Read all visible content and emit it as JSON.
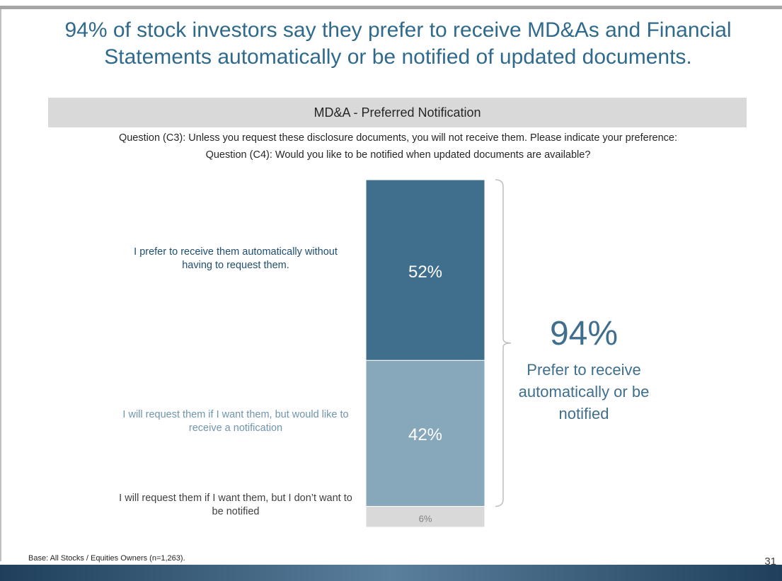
{
  "chart_data": {
    "type": "stacked-bar",
    "title": "94% of stock investors say they prefer to receive MD&As and Financial Statements automatically or be notified of updated documents.",
    "subtitle": "MD&A - Preferred Notification",
    "questions": [
      "Question (C3): Unless you request these disclosure documents, you will not receive them. Please indicate your preference:",
      "Question (C4): Would you like to be notified when updated documents are available?"
    ],
    "series": [
      {
        "name": "I prefer to receive them automatically without having to request them.",
        "color": "#3f6f8c",
        "label_color": "#1f4e6e",
        "value_label_color": "#ffffff",
        "values": [
          52
        ],
        "value_labels": [
          "52%"
        ]
      },
      {
        "name": "I will request them if I want them, but would like to receive a notification",
        "color": "#87a7ba",
        "label_color": "#6f95ad",
        "value_label_color": "#ffffff",
        "values": [
          42
        ],
        "value_labels": [
          "42%"
        ]
      },
      {
        "name": "I will request them if I want them, but I don’t want to be notified",
        "color": "#d9d9d9",
        "label_color": "#404040",
        "value_label_color": "#7f7f7f",
        "values": [
          6
        ],
        "value_labels": [
          "6%"
        ]
      }
    ],
    "bracket": {
      "value": 94,
      "label": "94%",
      "text": "Prefer to receive automatically or be notified"
    },
    "footnote": "Base: All Stocks / Equities Owners (n=1,263).",
    "page_number": "31"
  }
}
